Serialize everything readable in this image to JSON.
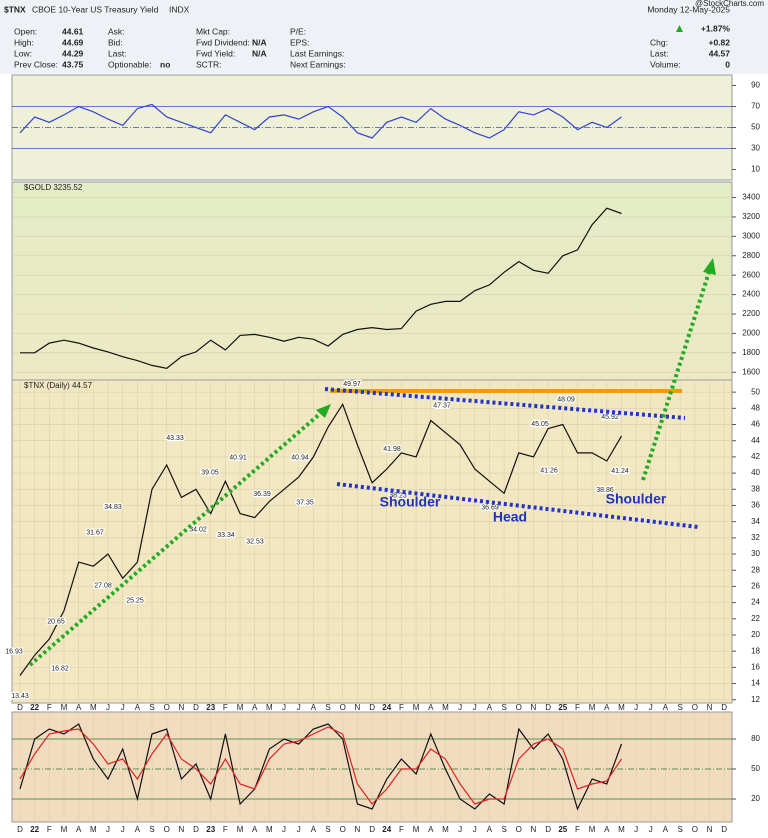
{
  "header": {
    "symbol": "$TNX",
    "description": "CBOE 10-Year US Treasury Yield",
    "exchange": "INDX",
    "date": "Monday 12-May-2025",
    "watermark": "@StockCharts.com",
    "columns": [
      [
        [
          "Open:",
          "44.61"
        ],
        [
          "High:",
          "44.69"
        ],
        [
          "Low:",
          "44.29"
        ],
        [
          "Prev Close:",
          "43.75"
        ]
      ],
      [
        [
          "Ask:"
        ],
        [
          "Bid:"
        ],
        [
          "Last:"
        ],
        [
          "Optionable:",
          "no"
        ]
      ],
      [
        [
          "Mkt Cap:"
        ],
        [
          "Fwd Dividend:",
          "N/A"
        ],
        [
          "Fwd Yield:",
          "N/A"
        ],
        [
          "SCTR:"
        ]
      ],
      [
        [
          "P/E:"
        ],
        [
          "EPS:"
        ],
        [
          "Last Earnings:"
        ],
        [
          "Next Earnings:"
        ]
      ]
    ],
    "change_pct": "+1.87%",
    "summary": [
      [
        "Chg:",
        "+0.82"
      ],
      [
        "Last:",
        "44.57"
      ],
      [
        "Volume:",
        "0"
      ]
    ]
  },
  "chart_data": [
    {
      "type": "line",
      "ylim": [
        0,
        100
      ],
      "yticks": [
        10,
        30,
        50,
        70,
        90
      ],
      "reference_lines": [
        70,
        50,
        30
      ],
      "reference_color": "#3a4fc8",
      "series": [
        {
          "color": "#3344cc",
          "values": [
            45,
            60,
            55,
            62,
            70,
            65,
            58,
            52,
            68,
            72,
            60,
            55,
            50,
            45,
            62,
            55,
            48,
            60,
            62,
            58,
            65,
            70,
            60,
            45,
            40,
            55,
            60,
            55,
            68,
            58,
            52,
            45,
            40,
            48,
            65,
            62,
            68,
            60,
            48,
            55,
            50,
            60,
            null,
            null,
            null,
            null,
            null,
            null,
            null
          ]
        }
      ]
    },
    {
      "type": "line",
      "name": "$GOLD",
      "last": 3235.52,
      "ylim": [
        1520,
        3560
      ],
      "yticks": [
        1600,
        1800,
        2000,
        2200,
        2400,
        2600,
        2800,
        3000,
        3200,
        3400
      ],
      "grid": true,
      "series": [
        {
          "color": "#111111",
          "values": [
            1800,
            1800,
            1900,
            1930,
            1900,
            1850,
            1810,
            1760,
            1720,
            1670,
            1640,
            1760,
            1810,
            1930,
            1830,
            1980,
            1990,
            1960,
            1920,
            1960,
            1940,
            1870,
            1990,
            2040,
            2060,
            2040,
            2050,
            2230,
            2300,
            2330,
            2330,
            2440,
            2500,
            2630,
            2740,
            2650,
            2620,
            2800,
            2860,
            3120,
            3290,
            3235.52,
            null,
            null,
            null,
            null,
            null,
            null,
            null
          ]
        }
      ]
    },
    {
      "type": "line",
      "name": "$TNX (Daily)",
      "last": 44.57,
      "ylim": [
        11.6,
        51.5
      ],
      "yticks": [
        12,
        14,
        16,
        18,
        20,
        22,
        24,
        26,
        28,
        30,
        32,
        34,
        36,
        38,
        40,
        42,
        44,
        46,
        48,
        50
      ],
      "grid": true,
      "categories": [
        "D",
        "22",
        "F",
        "M",
        "A",
        "M",
        "J",
        "J",
        "A",
        "S",
        "O",
        "N",
        "D",
        "23",
        "F",
        "M",
        "A",
        "M",
        "J",
        "J",
        "A",
        "S",
        "O",
        "N",
        "D",
        "24",
        "F",
        "M",
        "A",
        "M",
        "J",
        "J",
        "A",
        "S",
        "O",
        "N",
        "D",
        "25",
        "F",
        "M",
        "A",
        "M",
        "J",
        "J",
        "A",
        "S",
        "O",
        "N",
        "D"
      ],
      "series": [
        {
          "color": "#111111",
          "values": [
            15,
            17.5,
            19.5,
            23,
            29,
            28.5,
            30,
            27,
            29,
            38,
            41,
            37,
            38,
            35,
            39,
            35,
            34.5,
            36.5,
            38,
            39.5,
            42,
            45.7,
            48.5,
            43.5,
            38.8,
            40.5,
            42.5,
            42,
            46.5,
            45,
            43.5,
            40.5,
            39,
            37.5,
            42.5,
            42,
            45.5,
            46,
            42.5,
            42.5,
            41.5,
            44.57,
            null,
            null,
            null,
            null,
            null,
            null,
            null
          ]
        }
      ],
      "point_labels": [
        16.93,
        13.43,
        20.65,
        16.82,
        31.67,
        27.08,
        34.83,
        25.25,
        43.33,
        39.05,
        34.02,
        40.91,
        33.34,
        36.39,
        32.53,
        40.94,
        37.35,
        49.97,
        41.98,
        38.23,
        47.37,
        36.69,
        41.26,
        45.05,
        48.09,
        45.92,
        41.24,
        38.86
      ],
      "annotations": [
        "Shoulder",
        "Head",
        "Shoulder"
      ]
    },
    {
      "type": "line",
      "ylim": [
        -3,
        107
      ],
      "yticks": [
        20,
        50,
        80
      ],
      "reference_lines": [
        80,
        50,
        20
      ],
      "reference_color": "#2a7a2a",
      "categories": [
        "D",
        "22",
        "F",
        "M",
        "A",
        "M",
        "J",
        "J",
        "A",
        "S",
        "O",
        "N",
        "D",
        "23",
        "F",
        "M",
        "A",
        "M",
        "J",
        "J",
        "A",
        "S",
        "O",
        "N",
        "D",
        "24",
        "F",
        "M",
        "A",
        "M",
        "J",
        "J",
        "A",
        "S",
        "O",
        "N",
        "D",
        "25",
        "F",
        "M",
        "A",
        "M",
        "J",
        "J",
        "A",
        "S",
        "O",
        "N",
        "D"
      ],
      "series": [
        {
          "color": "#111111",
          "values": [
            30,
            80,
            90,
            85,
            95,
            60,
            40,
            70,
            20,
            85,
            90,
            40,
            55,
            20,
            85,
            15,
            30,
            70,
            80,
            75,
            90,
            95,
            80,
            15,
            10,
            40,
            60,
            45,
            85,
            50,
            20,
            10,
            25,
            15,
            90,
            70,
            85,
            60,
            10,
            40,
            35,
            75,
            null,
            null,
            null,
            null,
            null,
            null,
            null
          ]
        },
        {
          "color": "#dd2222",
          "values": [
            40,
            65,
            85,
            88,
            90,
            75,
            55,
            60,
            40,
            65,
            85,
            60,
            50,
            35,
            60,
            35,
            30,
            60,
            75,
            78,
            85,
            92,
            85,
            35,
            15,
            30,
            50,
            50,
            70,
            60,
            35,
            15,
            20,
            20,
            60,
            75,
            80,
            70,
            30,
            35,
            38,
            60,
            null,
            null,
            null,
            null,
            null,
            null,
            null
          ]
        }
      ]
    }
  ]
}
